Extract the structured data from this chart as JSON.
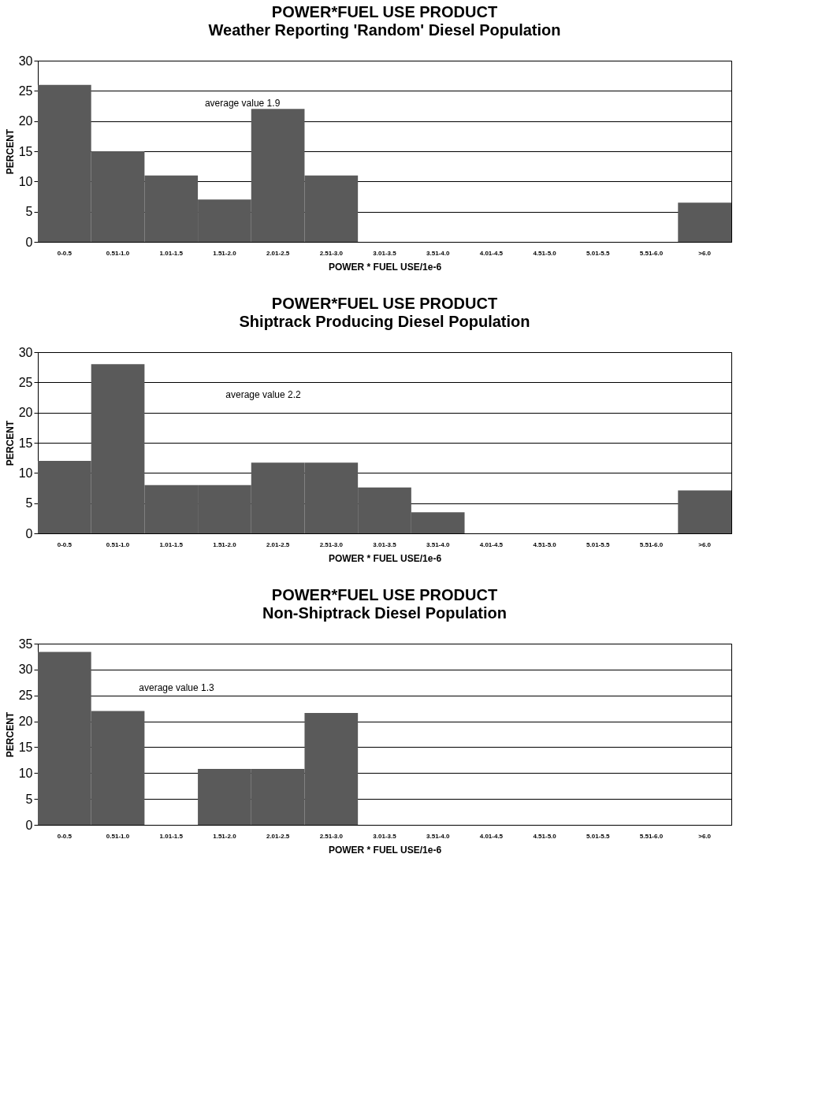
{
  "chart_data": [
    {
      "type": "bar",
      "title": "POWER*FUEL USE PRODUCT",
      "subtitle": "Weather Reporting 'Random' Diesel Population",
      "xlabel": "POWER * FUEL USE/1e-6",
      "ylabel": "PERCENT",
      "categories": [
        "0-0.5",
        "0.51-1.0",
        "1.01-1.5",
        "1.51-2.0",
        "2.01-2.5",
        "2.51-3.0",
        "3.01-3.5",
        "3.51-4.0",
        "4.01-4.5",
        "4.51-5.0",
        "5.01-5.5",
        "5.51-6.0",
        ">6.0"
      ],
      "values": [
        26,
        15,
        11,
        7,
        22,
        11,
        0,
        0,
        0,
        0,
        0,
        0,
        6.5
      ],
      "color": "#5a5a5a",
      "ylim": [
        0,
        30
      ],
      "yticks": [
        0,
        5,
        10,
        15,
        20,
        25,
        30
      ],
      "grid": "y",
      "annotations": [
        "average value 1.9"
      ]
    },
    {
      "type": "bar",
      "title": "POWER*FUEL USE PRODUCT",
      "subtitle": "Shiptrack Producing Diesel Population",
      "xlabel": "POWER * FUEL USE/1e-6",
      "ylabel": "PERCENT",
      "categories": [
        "0-0.5",
        "0.51-1.0",
        "1.01-1.5",
        "1.51-2.0",
        "2.01-2.5",
        "2.51-3.0",
        "3.01-3.5",
        "3.51-4.0",
        "4.01-4.5",
        "4.51-5.0",
        "5.01-5.5",
        "5.51-6.0",
        ">6.0"
      ],
      "values": [
        12,
        28,
        8,
        8,
        11.7,
        11.7,
        7.6,
        3.5,
        0,
        0,
        0,
        0,
        7.1
      ],
      "color": "#5a5a5a",
      "ylim": [
        0,
        30
      ],
      "yticks": [
        0,
        5,
        10,
        15,
        20,
        25,
        30
      ],
      "grid": "y",
      "annotations": [
        "average value 2.2"
      ]
    },
    {
      "type": "bar",
      "title": "POWER*FUEL USE PRODUCT",
      "subtitle": "Non-Shiptrack Diesel Population",
      "xlabel": "POWER * FUEL USE/1e-6",
      "ylabel": "PERCENT",
      "categories": [
        "0-0.5",
        "0.51-1.0",
        "1.01-1.5",
        "1.51-2.0",
        "2.01-2.5",
        "2.51-3.0",
        "3.01-3.5",
        "3.51-4.0",
        "4.01-4.5",
        "4.51-5.0",
        "5.01-5.5",
        "5.51-6.0",
        ">6.0"
      ],
      "values": [
        33.4,
        22,
        0,
        10.8,
        10.8,
        21.6,
        0,
        0,
        0,
        0,
        0,
        0,
        0
      ],
      "color": "#5a5a5a",
      "ylim": [
        0,
        35
      ],
      "yticks": [
        0,
        5,
        10,
        15,
        20,
        25,
        30,
        35
      ],
      "grid": "y",
      "annotations": [
        "average value 1.3"
      ]
    }
  ]
}
